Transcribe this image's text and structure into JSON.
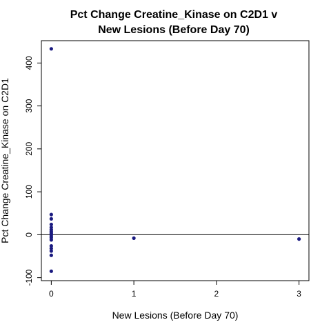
{
  "chart_data": {
    "type": "scatter",
    "title_lines": [
      "Pct Change Creatine_Kinase on C2D1 v",
      "New Lesions (Before Day 70)"
    ],
    "xlabel": "New Lesions (Before Day 70)",
    "ylabel": "Pct Change Creatine_Kinase on C2D1",
    "xlim": [
      -0.12,
      3.12
    ],
    "ylim": [
      -107,
      452
    ],
    "x_ticks": [
      0,
      1,
      2,
      3
    ],
    "y_ticks": [
      -100,
      0,
      100,
      200,
      300,
      400
    ],
    "reference_line": {
      "orientation": "horizontal",
      "y": 0,
      "color": "#000000"
    },
    "grid": false,
    "legend": "none",
    "point_color": "#1a1a80",
    "points": [
      {
        "x": 0,
        "y": 433
      },
      {
        "x": 0,
        "y": 47
      },
      {
        "x": 0,
        "y": 37
      },
      {
        "x": 0,
        "y": 24
      },
      {
        "x": 0,
        "y": 17
      },
      {
        "x": 0,
        "y": 12
      },
      {
        "x": 0,
        "y": 8
      },
      {
        "x": 0,
        "y": 4
      },
      {
        "x": 0,
        "y": 1
      },
      {
        "x": 0,
        "y": -3
      },
      {
        "x": 0,
        "y": -7
      },
      {
        "x": 0,
        "y": -12
      },
      {
        "x": 0,
        "y": -26
      },
      {
        "x": 0,
        "y": -32
      },
      {
        "x": 0,
        "y": -38
      },
      {
        "x": 0,
        "y": -48
      },
      {
        "x": 0,
        "y": -85
      },
      {
        "x": 1,
        "y": -8
      },
      {
        "x": 3,
        "y": -10
      }
    ]
  }
}
